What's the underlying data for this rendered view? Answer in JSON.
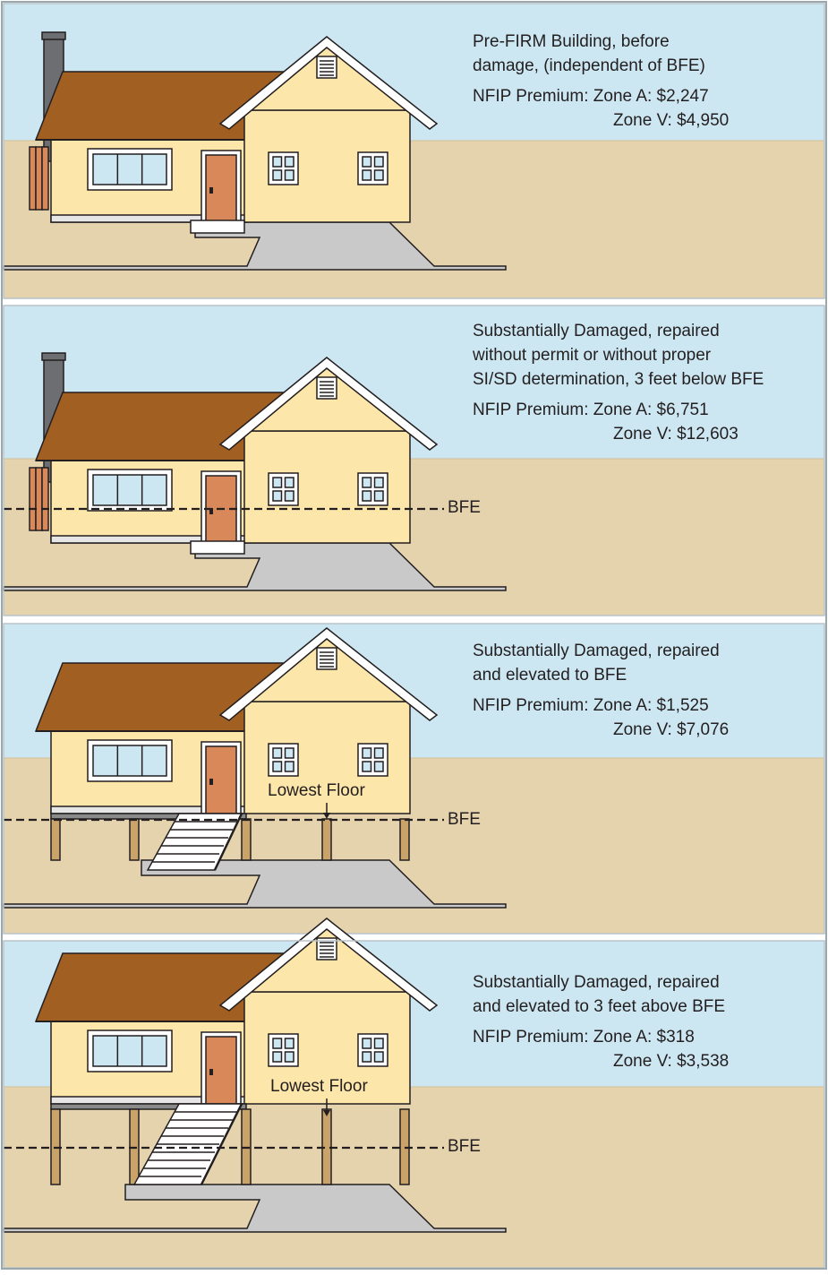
{
  "colors": {
    "sky": "#cde7f2",
    "ground": "#e5d3ae",
    "wall": "#fce6a9",
    "roof": "#a25f22",
    "trim": "#ffffff",
    "outline": "#231f20",
    "door": "#d9885a",
    "walkway": "#c9c9c9",
    "chimney": "#6d6e71",
    "fence": "#d9885a",
    "piling": "#caa36a",
    "panel_border": "#b9c4ca"
  },
  "icons": {
    "arrow": "down-arrow-icon"
  },
  "panels": [
    {
      "description_lines": [
        "Pre-FIRM Building, before",
        "damage, (independent of BFE)"
      ],
      "premium_zone_a": "NFIP Premium: Zone A: $2,247",
      "premium_zone_v": "Zone V: $4,950",
      "bfe_label": "",
      "lowest_floor_label": ""
    },
    {
      "description_lines": [
        "Substantially Damaged, repaired",
        "without permit or without proper",
        "SI/SD determination, 3 feet below BFE"
      ],
      "premium_zone_a": "NFIP Premium: Zone A: $6,751",
      "premium_zone_v": "Zone V: $12,603",
      "bfe_label": "BFE",
      "lowest_floor_label": ""
    },
    {
      "description_lines": [
        "Substantially Damaged, repaired",
        "and elevated to BFE"
      ],
      "premium_zone_a": "NFIP Premium: Zone A: $1,525",
      "premium_zone_v": "Zone V: $7,076",
      "bfe_label": "BFE",
      "lowest_floor_label": "Lowest Floor"
    },
    {
      "description_lines": [
        "Substantially Damaged, repaired",
        "and elevated to 3 feet above BFE"
      ],
      "premium_zone_a": "NFIP Premium: Zone A: $318",
      "premium_zone_v": "Zone V: $3,538",
      "bfe_label": "BFE",
      "lowest_floor_label": "Lowest Floor"
    }
  ]
}
